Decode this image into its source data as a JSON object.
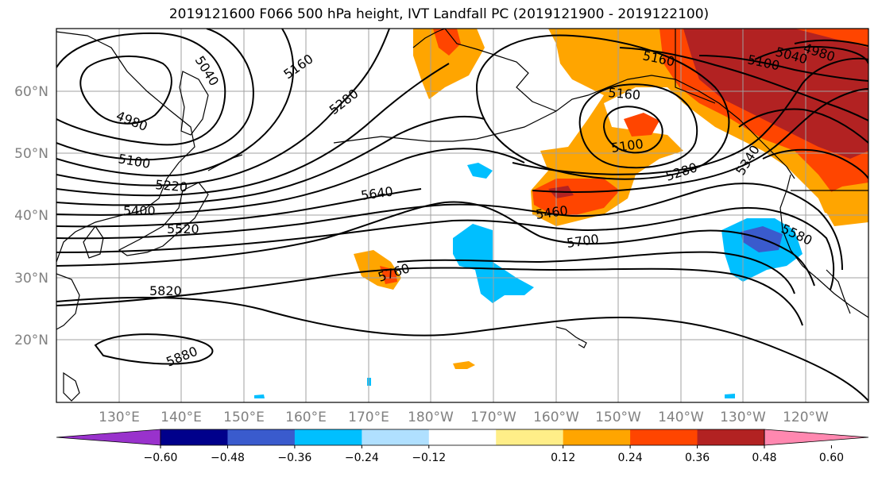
{
  "title": "2019121600 F066 500 hPa height, IVT Landfall PC (2019121900 - 2019122100)",
  "lat_labels": [
    "60°N",
    "50°N",
    "40°N",
    "30°N",
    "20°N"
  ],
  "lon_labels": [
    "130°E",
    "140°E",
    "150°E",
    "160°E",
    "170°E",
    "180°W",
    "170°W",
    "160°W",
    "150°W",
    "140°W",
    "130°W",
    "120°W"
  ],
  "contour_labels": [
    "4980",
    "5040",
    "5160",
    "5280",
    "5220",
    "5100",
    "5400",
    "5520",
    "5640",
    "5760",
    "5820",
    "5880",
    "5460",
    "5700",
    "5580",
    "5160",
    "5100",
    "5160",
    "5280",
    "5340",
    "4980",
    "5040",
    "5100"
  ],
  "colorbar": {
    "ticks": [
      "−0.60",
      "−0.48",
      "−0.36",
      "−0.24",
      "−0.12",
      "0.12",
      "0.24",
      "0.36",
      "0.48",
      "0.60"
    ],
    "colors": [
      "#9932cc",
      "#00008b",
      "#3a5bcd",
      "#00bfff",
      "#b0e0ff",
      "#ffffff",
      "#ffee88",
      "#ffa500",
      "#ff4500",
      "#b22222",
      "#ff88b0"
    ]
  }
}
